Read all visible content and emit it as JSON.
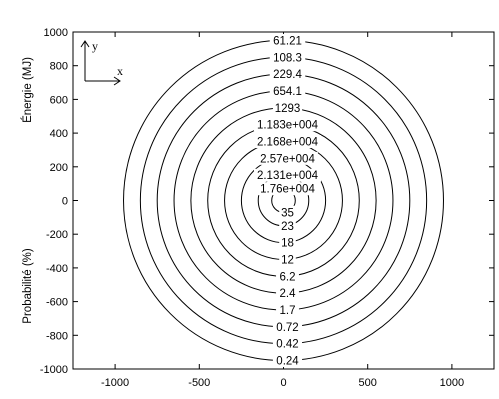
{
  "chart_data": {
    "type": "contour",
    "title": "",
    "xlim": [
      -1250,
      1250
    ],
    "ylim": [
      -1000,
      1000
    ],
    "x_ticks": [
      -1000,
      -500,
      0,
      500,
      1000
    ],
    "y_ticks": [
      1000,
      800,
      600,
      400,
      200,
      0,
      -200,
      -400,
      -600,
      -800,
      -1000
    ],
    "x_tick_labels": [
      "-1000",
      "-500",
      "0",
      "500",
      "1000"
    ],
    "y_tick_labels": [
      "1000",
      "800",
      "600",
      "400",
      "200",
      "0",
      "-200",
      "-400",
      "-600",
      "-800",
      "-1000"
    ],
    "ylabel_top": "Énergie (MJ)",
    "ylabel_bottom": "Probabilité (%)",
    "axis_indicator": {
      "x": "x",
      "y": "y"
    },
    "grid": false,
    "radii": [
      950,
      850,
      750,
      650,
      550,
      450,
      350,
      250,
      150,
      70
    ],
    "top_labels": [
      "61.21",
      "108.3",
      "229.4",
      "654.1",
      "1293",
      "1.183e+004",
      "2.168e+004",
      "2.57e+004",
      "2.131e+004",
      "1.76e+004"
    ],
    "bottom_labels": [
      "35",
      "23",
      "18",
      "12",
      "6.2",
      "2.4",
      "1.7",
      "0.72",
      "0.42",
      "0.24"
    ]
  }
}
